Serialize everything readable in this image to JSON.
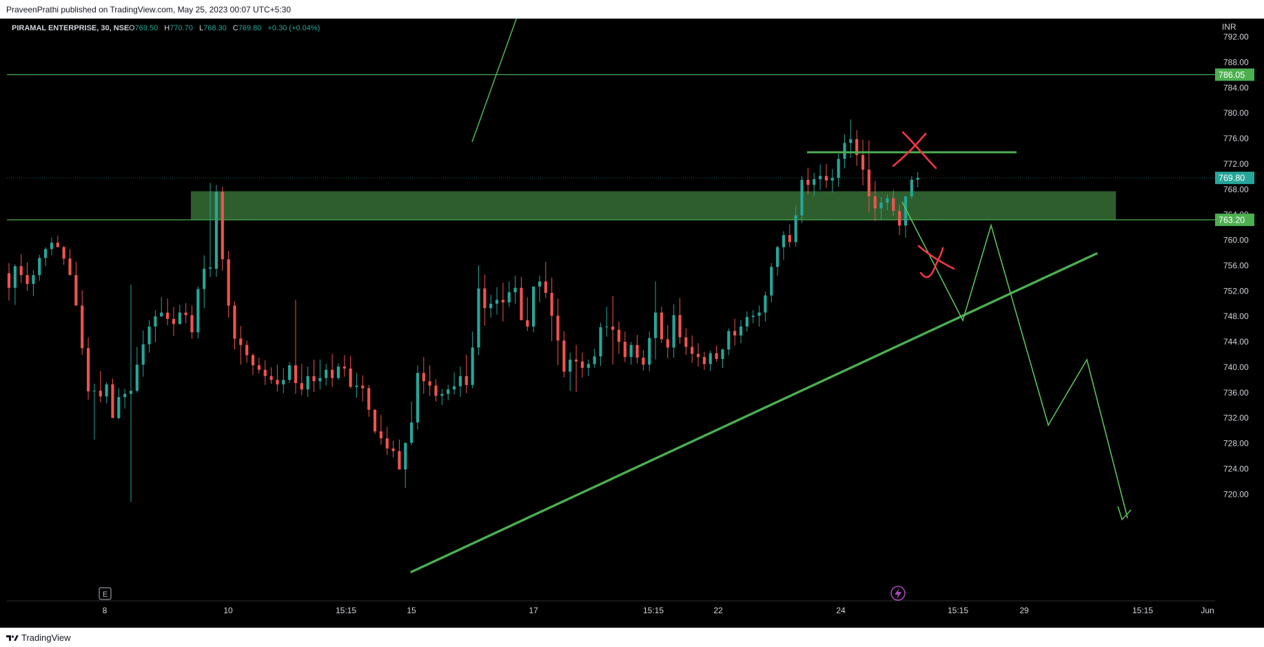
{
  "publisher": "PraveenPrathi published on TradingView.com, May 25, 2023 00:07 UTC+5:30",
  "footer_brand": "TradingView",
  "colors": {
    "background": "#000000",
    "up": "#26a69a",
    "down": "#ef5350",
    "level_line": "#4caf50",
    "zone_fill": "#2e5e2e",
    "annotation_green": "#4caf50",
    "annotation_red": "#f23645",
    "label_bg": "#4caf50",
    "price_label_bg": "#26a69a",
    "axis_text": "#d1d4dc",
    "ohlc_value": "#26a69a"
  },
  "legend": {
    "symbol": "PIRAMAL ENTERPRISE, 30, NSE",
    "o_label": "O",
    "o_value": "769.50",
    "h_label": "H",
    "h_value": "770.70",
    "l_label": "L",
    "l_value": "768.30",
    "c_label": "C",
    "c_value": "769.80",
    "change": "+0.30 (+0.04%)"
  },
  "chart_data": {
    "type": "candlestick",
    "symbol": "PIRAMAL ENTERPRISE",
    "interval": "30",
    "exchange": "NSE",
    "currency": "INR",
    "ylim": [
      718,
      794
    ],
    "y_ticks": [
      "792.00",
      "788.00",
      "784.00",
      "780.00",
      "776.00",
      "772.00",
      "768.00",
      "764.00",
      "760.00",
      "756.00",
      "752.00",
      "748.00",
      "744.00",
      "740.00",
      "736.00",
      "732.00",
      "728.00",
      "724.00",
      "720.00"
    ],
    "x_ticks": [
      "8",
      "10",
      "15:15",
      "15",
      "17",
      "15:15",
      "22",
      "24",
      "15:15",
      "29",
      "15:15",
      "Jun"
    ],
    "grid": false,
    "last_price": "769.80",
    "horizontal_levels": [
      "786.05",
      "763.20"
    ],
    "support_zone": {
      "low": 763.2,
      "high": 767.7
    },
    "trendline": {
      "from_price": 721.0,
      "to_price": 763.5
    },
    "candles_ohlc": [
      [
        754.8,
        756.4,
        750.5,
        752.5
      ],
      [
        752.5,
        756.2,
        749.8,
        755.9
      ],
      [
        755.9,
        757.8,
        753.3,
        754.5
      ],
      [
        754.5,
        756.5,
        752.0,
        753.1
      ],
      [
        753.1,
        755.3,
        751.2,
        754.5
      ],
      [
        754.5,
        757.7,
        753.6,
        757.2
      ],
      [
        757.2,
        758.9,
        755.9,
        758.6
      ],
      [
        758.6,
        760.4,
        757.6,
        759.6
      ],
      [
        759.6,
        760.7,
        758.9,
        758.9
      ],
      [
        758.9,
        759.1,
        756.1,
        757.1
      ],
      [
        757.1,
        758.6,
        754.5,
        754.5
      ],
      [
        754.5,
        756.6,
        751.0,
        749.7
      ],
      [
        749.7,
        752.1,
        741.9,
        743.0
      ],
      [
        743.0,
        744.7,
        734.9,
        736.2
      ],
      [
        736.2,
        737.4,
        728.6,
        736.3
      ],
      [
        736.3,
        739.4,
        734.5,
        735.4
      ],
      [
        735.4,
        737.6,
        734.3,
        737.3
      ],
      [
        737.3,
        738.2,
        733.4,
        732.0
      ],
      [
        732.0,
        736.7,
        731.8,
        735.3
      ],
      [
        735.3,
        736.6,
        733.5,
        735.8
      ],
      [
        735.8,
        753.0,
        718.8,
        736.3
      ],
      [
        736.3,
        743.2,
        736.0,
        740.4
      ],
      [
        740.4,
        745.8,
        738.5,
        743.6
      ],
      [
        743.6,
        747.4,
        742.3,
        746.4
      ],
      [
        746.4,
        749.0,
        743.9,
        748.0
      ],
      [
        748.0,
        751.0,
        747.9,
        748.6
      ],
      [
        748.6,
        750.8,
        746.6,
        747.6
      ],
      [
        747.6,
        749.5,
        744.9,
        746.8
      ],
      [
        746.8,
        749.8,
        746.7,
        748.6
      ],
      [
        748.6,
        750.1,
        746.9,
        748.2
      ],
      [
        748.2,
        749.7,
        744.5,
        745.5
      ],
      [
        745.5,
        752.7,
        744.5,
        752.3
      ],
      [
        752.3,
        757.6,
        749.3,
        755.5
      ],
      [
        755.5,
        769.0,
        754.2,
        755.7
      ],
      [
        755.5,
        768.7,
        754.2,
        767.6
      ],
      [
        767.6,
        768.4,
        755.2,
        757.0
      ],
      [
        757.0,
        758.3,
        747.8,
        749.7
      ],
      [
        749.7,
        750.4,
        742.8,
        744.5
      ],
      [
        744.5,
        746.5,
        740.4,
        743.5
      ],
      [
        743.5,
        744.2,
        740.7,
        741.9
      ],
      [
        741.9,
        742.2,
        738.8,
        740.3
      ],
      [
        740.3,
        741.5,
        739.0,
        739.6
      ],
      [
        739.6,
        741.1,
        737.2,
        738.6
      ],
      [
        738.6,
        740.0,
        737.4,
        738.0
      ],
      [
        738.0,
        740.4,
        736.2,
        737.3
      ],
      [
        737.3,
        739.9,
        735.9,
        738.0
      ],
      [
        738.0,
        740.8,
        737.5,
        740.3
      ],
      [
        740.3,
        750.6,
        735.8,
        737.5
      ],
      [
        737.5,
        740.5,
        735.6,
        736.5
      ],
      [
        736.5,
        740.1,
        735.3,
        738.6
      ],
      [
        738.6,
        741.2,
        736.1,
        737.8
      ],
      [
        737.8,
        741.2,
        736.5,
        738.3
      ],
      [
        738.3,
        740.5,
        737.1,
        739.6
      ],
      [
        739.6,
        742.1,
        736.9,
        738.3
      ],
      [
        738.3,
        740.6,
        738.0,
        740.1
      ],
      [
        740.1,
        741.9,
        738.5,
        739.8
      ],
      [
        739.8,
        741.8,
        736.7,
        736.9
      ],
      [
        736.9,
        739.1,
        735.2,
        737.1
      ],
      [
        737.1,
        738.7,
        734.6,
        736.7
      ],
      [
        736.7,
        737.2,
        732.2,
        733.3
      ],
      [
        733.3,
        733.4,
        729.5,
        729.9
      ],
      [
        729.9,
        732.5,
        727.8,
        728.8
      ],
      [
        728.8,
        730.6,
        726.2,
        727.2
      ],
      [
        727.2,
        728.4,
        725.8,
        726.8
      ],
      [
        726.8,
        728.6,
        724.1,
        723.9
      ],
      [
        723.9,
        727.5,
        721.0,
        728.1
      ],
      [
        728.1,
        734.6,
        727.7,
        731.3
      ],
      [
        731.3,
        740.3,
        730.2,
        739.1
      ],
      [
        739.1,
        741.6,
        735.8,
        737.8
      ],
      [
        737.8,
        740.3,
        735.5,
        737.1
      ],
      [
        737.1,
        738.1,
        734.6,
        735.5
      ],
      [
        735.5,
        736.6,
        734.0,
        735.8
      ],
      [
        735.8,
        737.2,
        734.8,
        736.5
      ],
      [
        736.5,
        739.2,
        735.7,
        737.0
      ],
      [
        737.0,
        740.1,
        735.3,
        738.6
      ],
      [
        738.6,
        742.0,
        735.9,
        737.2
      ],
      [
        737.2,
        745.6,
        736.7,
        743.1
      ],
      [
        743.1,
        756.0,
        741.9,
        752.4
      ],
      [
        752.4,
        754.6,
        746.5,
        749.3
      ],
      [
        749.3,
        751.4,
        747.8,
        750.0
      ],
      [
        750.0,
        752.6,
        748.3,
        750.6
      ],
      [
        750.6,
        753.3,
        747.2,
        750.2
      ],
      [
        750.2,
        753.5,
        749.5,
        751.8
      ],
      [
        751.8,
        754.4,
        750.0,
        752.5
      ],
      [
        752.5,
        754.2,
        749.1,
        747.4
      ],
      [
        747.4,
        751.0,
        745.7,
        746.4
      ],
      [
        746.4,
        749.7,
        745.5,
        752.7
      ],
      [
        752.7,
        754.4,
        750.2,
        753.5
      ],
      [
        753.5,
        756.6,
        750.9,
        751.7
      ],
      [
        751.7,
        754.1,
        744.1,
        748.1
      ],
      [
        748.1,
        750.8,
        740.3,
        744.2
      ],
      [
        744.2,
        745.7,
        738.4,
        739.3
      ],
      [
        739.3,
        742.3,
        736.3,
        741.2
      ],
      [
        741.2,
        743.5,
        736.1,
        740.9
      ],
      [
        740.9,
        742.3,
        738.4,
        739.9
      ],
      [
        739.9,
        741.2,
        738.6,
        740.5
      ],
      [
        740.5,
        742.9,
        739.9,
        741.7
      ],
      [
        741.7,
        747.0,
        740.2,
        746.3
      ],
      [
        746.3,
        749.5,
        744.8,
        746.4
      ],
      [
        746.4,
        751.2,
        740.4,
        745.9
      ],
      [
        745.9,
        747.2,
        742.1,
        744.0
      ],
      [
        744.0,
        745.6,
        740.8,
        741.6
      ],
      [
        741.6,
        744.0,
        740.4,
        743.5
      ],
      [
        743.5,
        745.1,
        740.6,
        741.5
      ],
      [
        741.5,
        742.7,
        739.5,
        740.4
      ],
      [
        740.4,
        745.6,
        739.4,
        744.6
      ],
      [
        744.6,
        753.5,
        741.2,
        748.6
      ],
      [
        748.6,
        749.5,
        743.8,
        744.4
      ],
      [
        744.4,
        746.6,
        741.4,
        743.1
      ],
      [
        743.1,
        749.9,
        741.5,
        748.2
      ],
      [
        748.2,
        750.9,
        743.7,
        744.7
      ],
      [
        744.7,
        746.1,
        741.9,
        743.2
      ],
      [
        743.2,
        745.0,
        740.7,
        742.1
      ],
      [
        742.1,
        743.8,
        740.1,
        741.6
      ],
      [
        741.6,
        742.4,
        739.6,
        740.5
      ],
      [
        740.5,
        742.6,
        739.4,
        742.2
      ],
      [
        742.2,
        743.4,
        740.9,
        741.3
      ],
      [
        741.3,
        742.9,
        739.9,
        742.8
      ],
      [
        742.8,
        746.1,
        741.9,
        745.7
      ],
      [
        745.7,
        747.6,
        743.4,
        745.0
      ],
      [
        745.0,
        747.4,
        743.8,
        746.4
      ],
      [
        746.4,
        748.8,
        745.6,
        747.9
      ],
      [
        747.9,
        749.0,
        746.9,
        748.1
      ],
      [
        748.1,
        749.7,
        746.4,
        748.6
      ],
      [
        748.6,
        751.9,
        747.2,
        751.3
      ],
      [
        751.3,
        756.4,
        750.2,
        755.8
      ],
      [
        755.8,
        759.1,
        754.4,
        758.9
      ],
      [
        758.9,
        761.4,
        756.9,
        760.8
      ],
      [
        760.8,
        762.5,
        758.9,
        759.7
      ],
      [
        759.7,
        765.4,
        759.0,
        763.9
      ],
      [
        763.9,
        770.1,
        762.7,
        769.5
      ],
      [
        769.5,
        771.4,
        767.2,
        768.7
      ],
      [
        768.7,
        770.6,
        766.9,
        769.6
      ],
      [
        769.6,
        771.9,
        767.9,
        770.1
      ],
      [
        770.1,
        772.0,
        768.2,
        769.4
      ],
      [
        769.4,
        771.2,
        767.5,
        769.8
      ],
      [
        769.8,
        773.6,
        768.4,
        772.8
      ],
      [
        772.8,
        776.7,
        771.3,
        775.3
      ],
      [
        775.3,
        779.0,
        773.0,
        775.9
      ],
      [
        775.9,
        777.3,
        771.7,
        773.4
      ],
      [
        773.4,
        775.8,
        768.6,
        771.1
      ],
      [
        771.1,
        775.7,
        764.4,
        766.9
      ],
      [
        766.9,
        769.3,
        763.0,
        765.0
      ],
      [
        765.0,
        766.8,
        763.2,
        765.9
      ],
      [
        765.9,
        767.2,
        764.7,
        766.6
      ],
      [
        766.6,
        767.9,
        763.8,
        764.6
      ],
      [
        764.6,
        765.6,
        760.8,
        762.3
      ],
      [
        762.3,
        764.9,
        760.4,
        766.9
      ],
      [
        766.9,
        770.1,
        766.5,
        769.5
      ],
      [
        769.5,
        770.7,
        768.3,
        769.8
      ]
    ]
  },
  "levels": {
    "l1": {
      "label": "786.05"
    },
    "l2": {
      "label": "763.20"
    }
  },
  "axis": {
    "currency": "INR",
    "last_price": "769.80"
  },
  "markers": {
    "earnings": "E"
  }
}
